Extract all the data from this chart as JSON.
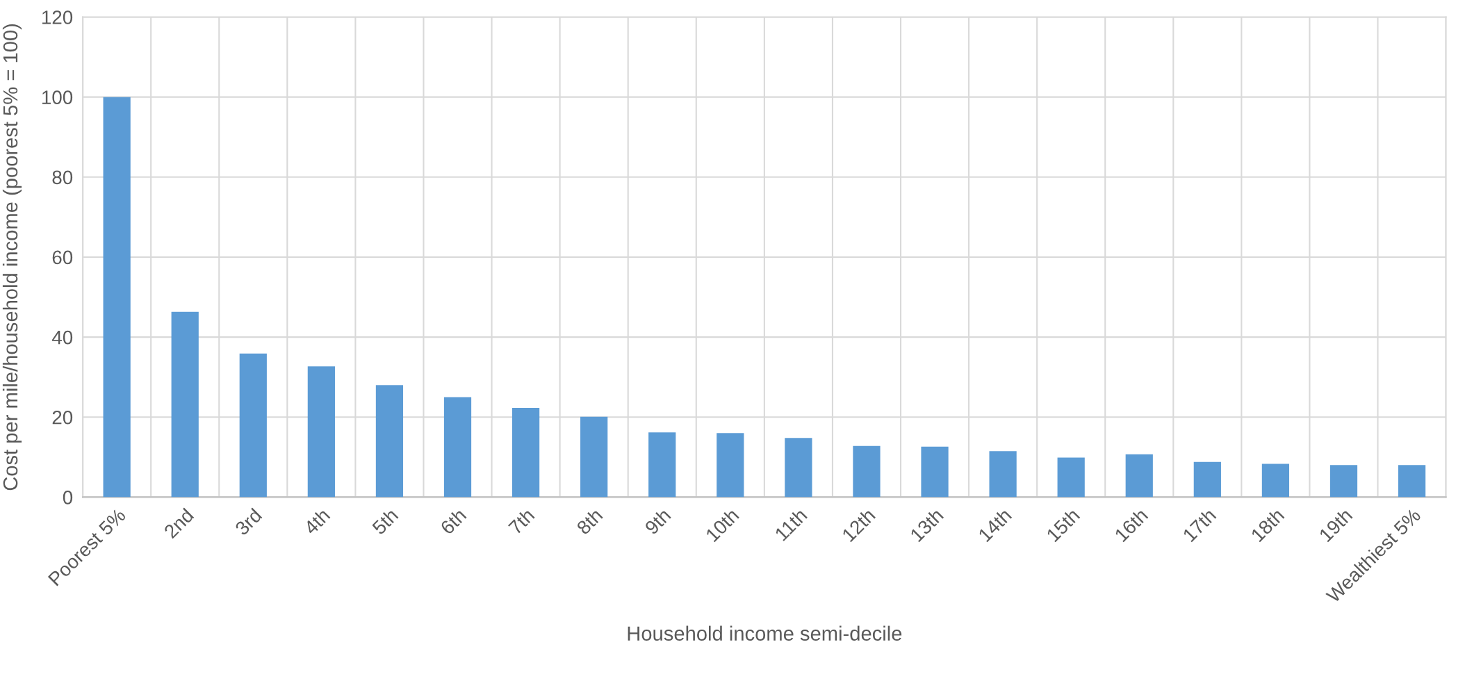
{
  "chart_data": {
    "type": "bar",
    "xlabel": "Household income semi-decile",
    "ylabel": "Cost per mile/household income (poorest 5% = 100)",
    "categories": [
      "Poorest 5%",
      "2nd",
      "3rd",
      "4th",
      "5th",
      "6th",
      "7th",
      "8th",
      "9th",
      "10th",
      "11th",
      "12th",
      "13th",
      "14th",
      "15th",
      "16th",
      "17th",
      "18th",
      "19th",
      "Wealthiest 5%"
    ],
    "values": [
      100,
      46.3,
      35.9,
      32.7,
      28.0,
      25.0,
      22.3,
      20.1,
      16.2,
      16.0,
      14.8,
      12.8,
      12.6,
      11.5,
      9.9,
      10.7,
      8.8,
      8.3,
      8.0,
      8.0
    ],
    "color": "#5b9bd5",
    "ylim": [
      0,
      120
    ],
    "yticks": [
      0,
      20,
      40,
      60,
      80,
      100,
      120
    ],
    "grid": true
  }
}
